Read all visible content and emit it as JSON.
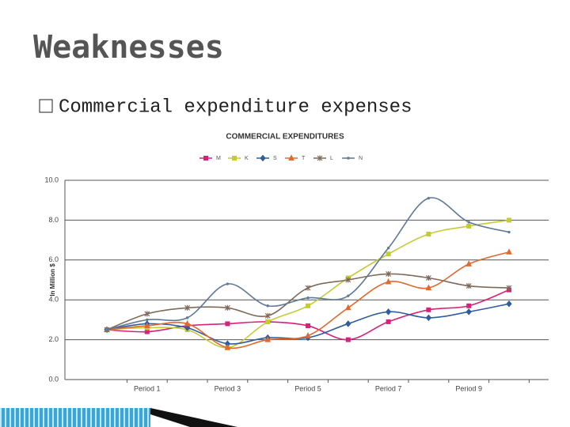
{
  "slide": {
    "title": "Weaknesses",
    "bullet": "Commercial expenditure expenses"
  },
  "chart_data": {
    "type": "line",
    "title": "COMMERCIAL EXPENDITURES",
    "y_label": "In Million $",
    "categories": [
      null,
      "Period 1",
      null,
      "Period 3",
      null,
      "Period 5",
      null,
      "Period 7",
      null,
      "Period 9",
      null
    ],
    "series": [
      {
        "name": "M",
        "color": "#d6237a",
        "marker": "square",
        "values": [
          2.5,
          2.4,
          2.7,
          2.8,
          2.9,
          2.7,
          2.0,
          2.9,
          3.5,
          3.7,
          4.5
        ]
      },
      {
        "name": "K",
        "color": "#c3cc35",
        "marker": "square",
        "values": [
          2.5,
          2.6,
          2.5,
          1.6,
          2.9,
          3.7,
          5.1,
          6.3,
          7.3,
          7.7,
          8.0
        ]
      },
      {
        "name": "S",
        "color": "#2f5d9e",
        "marker": "diamond",
        "values": [
          2.5,
          2.8,
          2.6,
          1.8,
          2.1,
          2.1,
          2.8,
          3.4,
          3.1,
          3.4,
          3.8
        ]
      },
      {
        "name": "T",
        "color": "#e06a2e",
        "marker": "triangle",
        "values": [
          2.5,
          2.7,
          2.8,
          1.6,
          2.0,
          2.2,
          3.6,
          4.9,
          4.6,
          5.8,
          6.4
        ]
      },
      {
        "name": "L",
        "color": "#7f6a5a",
        "marker": "star",
        "values": [
          2.5,
          3.3,
          3.6,
          3.6,
          3.2,
          4.6,
          5.0,
          5.3,
          5.1,
          4.7,
          4.6
        ]
      },
      {
        "name": "N",
        "color": "#5f7a96",
        "marker": "none",
        "values": [
          2.5,
          3.0,
          3.1,
          4.8,
          3.7,
          4.1,
          4.2,
          6.6,
          9.1,
          7.9,
          7.4
        ]
      }
    ],
    "ylim": [
      0,
      10
    ],
    "yticks": [
      {
        "value": 0,
        "label": "0.0"
      },
      {
        "value": 2,
        "label": "2.0"
      },
      {
        "value": 4,
        "label": "4.0"
      },
      {
        "value": 6,
        "label": "6.0"
      },
      {
        "value": 8,
        "label": "8.0"
      },
      {
        "value": 10,
        "label": "10.0"
      }
    ],
    "grid": true,
    "legend": "top"
  }
}
